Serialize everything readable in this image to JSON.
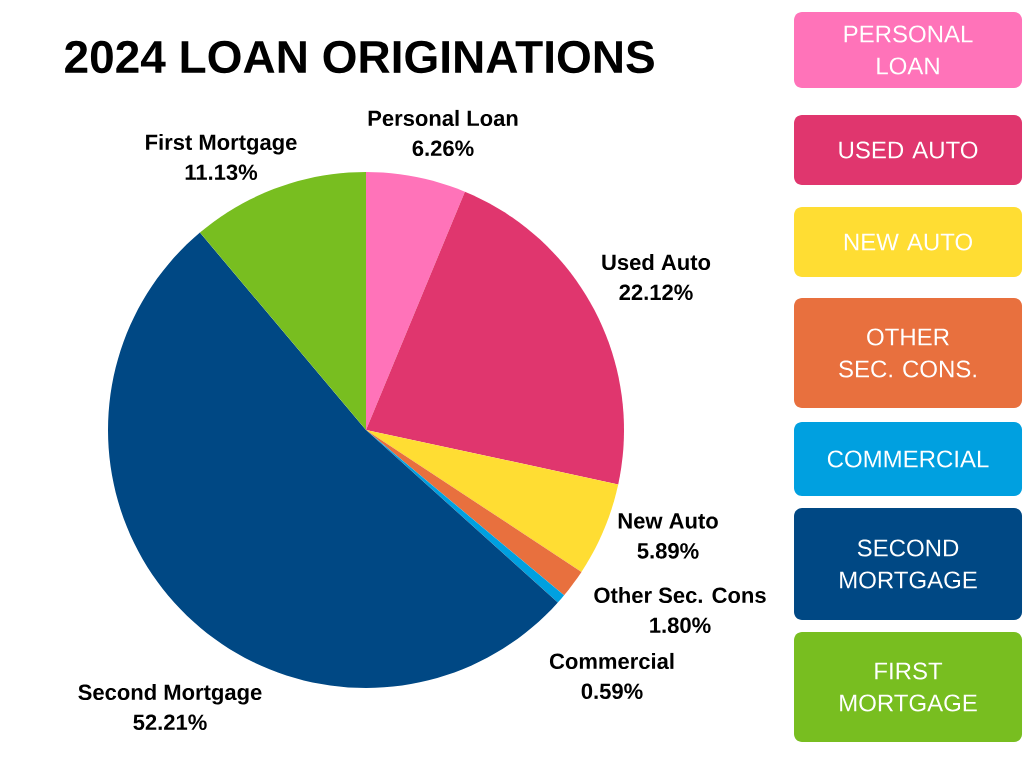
{
  "chart_data": {
    "type": "pie",
    "title": "2024 LOAN ORIGINATIONS",
    "categories": [
      "Personal Loan",
      "Used Auto",
      "New Auto",
      "Other Sec. Cons",
      "Commercial",
      "Second Mortgage",
      "First Mortgage"
    ],
    "values": [
      6.26,
      22.12,
      5.89,
      1.8,
      0.59,
      52.21,
      11.13
    ],
    "value_labels": [
      "6.26%",
      "22.12%",
      "5.89%",
      "1.80%",
      "0.59%",
      "52.21%",
      "11.13%"
    ],
    "colors": [
      "#ff73b9",
      "#e0366e",
      "#ffdd33",
      "#e8703e",
      "#00a0e0",
      "#004884",
      "#78be20"
    ],
    "annotations": [
      "PERSONAL LOAN",
      "USED AUTO",
      "NEW AUTO",
      "OTHER SEC. CONS.",
      "COMMERCIAL",
      "SECOND MORTGAGE",
      "FIRST MORTGAGE"
    ]
  }
}
